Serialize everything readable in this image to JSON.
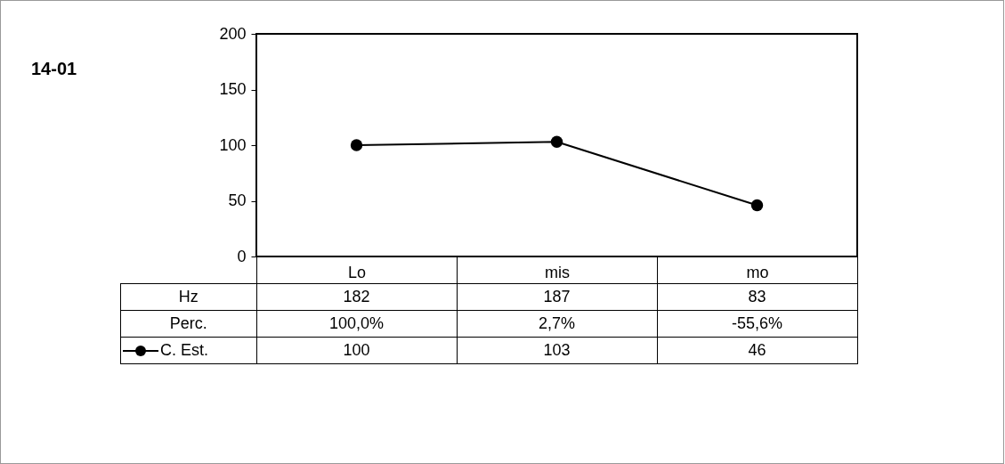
{
  "chart_data": {
    "type": "line",
    "title": "14-01",
    "categories": [
      "Lo",
      "mis",
      "mo"
    ],
    "series": [
      {
        "name": "Hz",
        "values": [
          null,
          null,
          null
        ],
        "value_labels": [
          "182",
          "187",
          "83"
        ]
      },
      {
        "name": "Perc.",
        "values": [
          null,
          null,
          null
        ],
        "value_labels": [
          "100,0%",
          "2,7%",
          "-55,6%"
        ]
      },
      {
        "name": "C. Est.",
        "color": "#000000",
        "values": [
          100,
          103,
          46
        ],
        "value_labels": [
          "100",
          "103",
          "46"
        ]
      }
    ],
    "ylim": [
      0,
      200
    ],
    "yticks": [
      0,
      50,
      100,
      150,
      200
    ],
    "grid": false,
    "legend": "bottom left",
    "marker": "circle",
    "line_style": "solid"
  }
}
